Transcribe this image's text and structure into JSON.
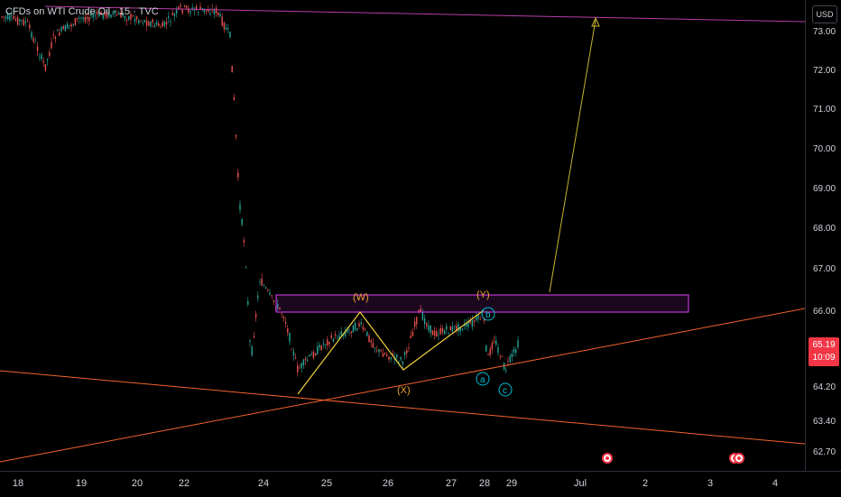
{
  "chart": {
    "title": "CFDs on WTI Crude Oil · 15 · TVC",
    "currency": "USD",
    "last_price": "65.19",
    "countdown": "10:09",
    "price_ticks": [
      "73.00",
      "72.00",
      "71.00",
      "70.00",
      "69.00",
      "68.00",
      "67.00",
      "66.00",
      "64.20",
      "63.40",
      "62.70"
    ],
    "time_ticks": [
      "18",
      "19",
      "20",
      "22",
      "24",
      "25",
      "26",
      "27",
      "28",
      "29",
      "Jul",
      "2",
      "3",
      "4"
    ],
    "wave_labels": {
      "W": "(W)",
      "X": "(X)",
      "Y": "(Y)",
      "a": "a",
      "b": "b",
      "c": "c"
    },
    "colors": {
      "background": "#000000",
      "candle_up": "#26a69a",
      "candle_down": "#ef5350",
      "pattern_line": "#f2d13a",
      "wave_label": "#f0a030",
      "minor_wave": "#00bcd4",
      "zone": "#e040fb",
      "trendline": "#f2622d",
      "resistance": "#b93da8",
      "price_badge": "#f23645"
    }
  }
}
